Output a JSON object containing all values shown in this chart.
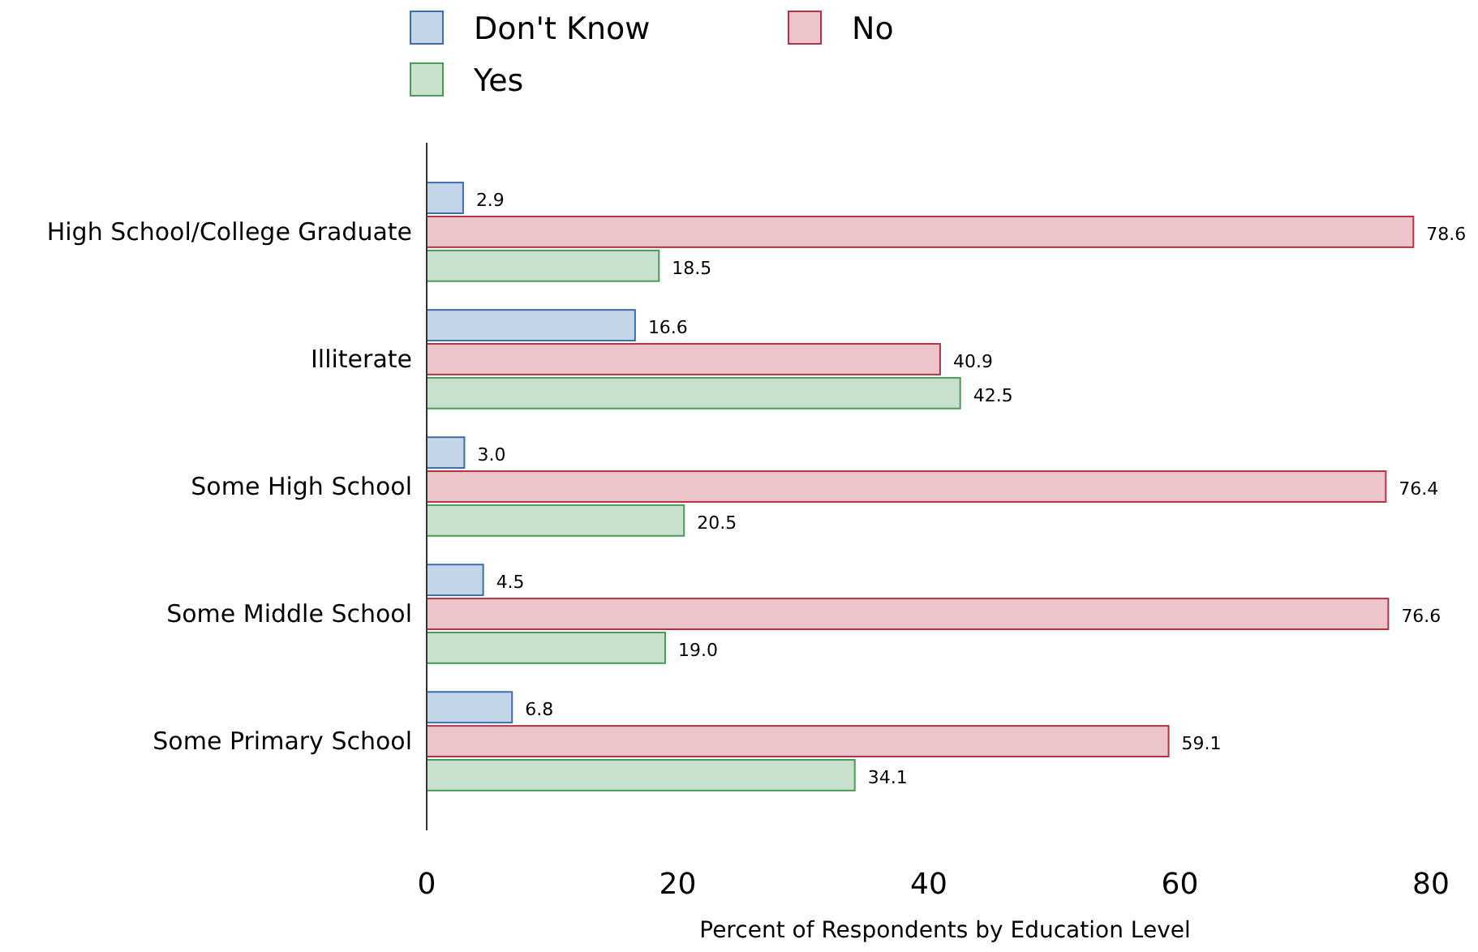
{
  "chart_data": {
    "type": "bar",
    "orientation": "horizontal",
    "xlabel": "Percent of Respondents by Education Level",
    "categories": [
      "High School/College Graduate",
      "Illiterate",
      "Some High School",
      "Some Middle School",
      "Some Primary School"
    ],
    "series": [
      {
        "name": "Don't Know",
        "color": "#c5d5e8",
        "values": [
          2.9,
          16.6,
          3.0,
          4.5,
          6.8
        ],
        "value_labels": [
          "2.9",
          "16.6",
          "3.0",
          "4.5",
          "6.8"
        ]
      },
      {
        "name": "No",
        "color": "#ecc4ca",
        "values": [
          78.6,
          40.9,
          76.4,
          76.6,
          59.1
        ],
        "value_labels": [
          "78.6",
          "40.9",
          "76.4",
          "76.6",
          "59.1"
        ]
      },
      {
        "name": "Yes",
        "color": "#c8e0cc",
        "values": [
          18.5,
          42.5,
          20.5,
          19.0,
          34.1
        ],
        "value_labels": [
          "18.5",
          "42.5",
          "20.5",
          "19.0",
          "34.1"
        ]
      }
    ],
    "xlim": [
      0,
      80
    ],
    "xticks": [
      0,
      20,
      40,
      60,
      80
    ],
    "grid": false,
    "legend": "top"
  }
}
